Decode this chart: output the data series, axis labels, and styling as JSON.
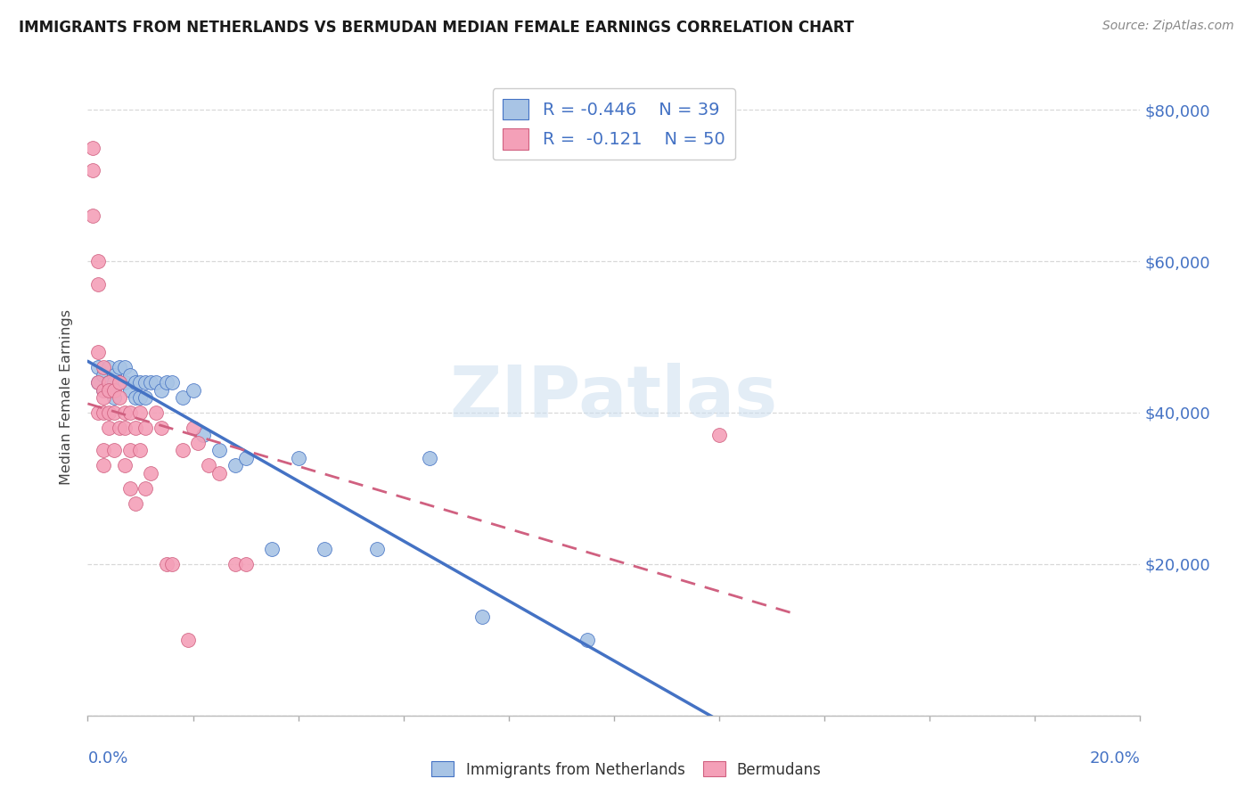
{
  "title": "IMMIGRANTS FROM NETHERLANDS VS BERMUDAN MEDIAN FEMALE EARNINGS CORRELATION CHART",
  "source": "Source: ZipAtlas.com",
  "ylabel": "Median Female Earnings",
  "right_yticks": [
    0,
    20000,
    40000,
    60000,
    80000
  ],
  "right_yticklabels": [
    "",
    "$20,000",
    "$40,000",
    "$60,000",
    "$80,000"
  ],
  "legend_r_blue": "-0.446",
  "legend_n_blue": "39",
  "legend_r_pink": "-0.121",
  "legend_n_pink": "50",
  "blue_fill": "#a8c4e5",
  "blue_edge": "#4472c4",
  "pink_fill": "#f4a0b8",
  "pink_edge": "#d06080",
  "blue_line_color": "#4472c4",
  "pink_line_color": "#d06080",
  "watermark_text": "ZIPatlas",
  "blue_scatter_x": [
    0.002,
    0.002,
    0.003,
    0.003,
    0.004,
    0.004,
    0.005,
    0.005,
    0.005,
    0.006,
    0.006,
    0.007,
    0.007,
    0.008,
    0.008,
    0.009,
    0.009,
    0.01,
    0.01,
    0.011,
    0.011,
    0.012,
    0.013,
    0.014,
    0.015,
    0.016,
    0.018,
    0.02,
    0.022,
    0.025,
    0.028,
    0.03,
    0.035,
    0.04,
    0.045,
    0.055,
    0.065,
    0.075,
    0.095
  ],
  "blue_scatter_y": [
    46000,
    44000,
    45000,
    43000,
    46000,
    44000,
    45000,
    44000,
    42000,
    46000,
    44000,
    46000,
    44000,
    45000,
    43000,
    44000,
    42000,
    44000,
    42000,
    44000,
    42000,
    44000,
    44000,
    43000,
    44000,
    44000,
    42000,
    43000,
    37000,
    35000,
    33000,
    34000,
    22000,
    34000,
    22000,
    22000,
    34000,
    13000,
    10000
  ],
  "pink_scatter_x": [
    0.001,
    0.001,
    0.001,
    0.002,
    0.002,
    0.002,
    0.002,
    0.002,
    0.003,
    0.003,
    0.003,
    0.003,
    0.003,
    0.003,
    0.004,
    0.004,
    0.004,
    0.004,
    0.005,
    0.005,
    0.005,
    0.006,
    0.006,
    0.006,
    0.007,
    0.007,
    0.007,
    0.008,
    0.008,
    0.008,
    0.009,
    0.009,
    0.01,
    0.01,
    0.011,
    0.011,
    0.012,
    0.013,
    0.014,
    0.015,
    0.016,
    0.018,
    0.019,
    0.02,
    0.021,
    0.023,
    0.025,
    0.028,
    0.03,
    0.12
  ],
  "pink_scatter_y": [
    75000,
    72000,
    66000,
    60000,
    57000,
    48000,
    44000,
    40000,
    46000,
    43000,
    42000,
    40000,
    35000,
    33000,
    44000,
    43000,
    40000,
    38000,
    43000,
    40000,
    35000,
    44000,
    42000,
    38000,
    40000,
    38000,
    33000,
    40000,
    35000,
    30000,
    38000,
    28000,
    40000,
    35000,
    38000,
    30000,
    32000,
    40000,
    38000,
    20000,
    20000,
    35000,
    10000,
    38000,
    36000,
    33000,
    32000,
    20000,
    20000,
    37000
  ],
  "xlim": [
    0,
    0.2
  ],
  "ylim": [
    0,
    84000
  ],
  "grid_color": "#d8d8d8",
  "title_color": "#1a1a1a",
  "right_label_color": "#4472c4",
  "tick_label_color": "#4472c4"
}
